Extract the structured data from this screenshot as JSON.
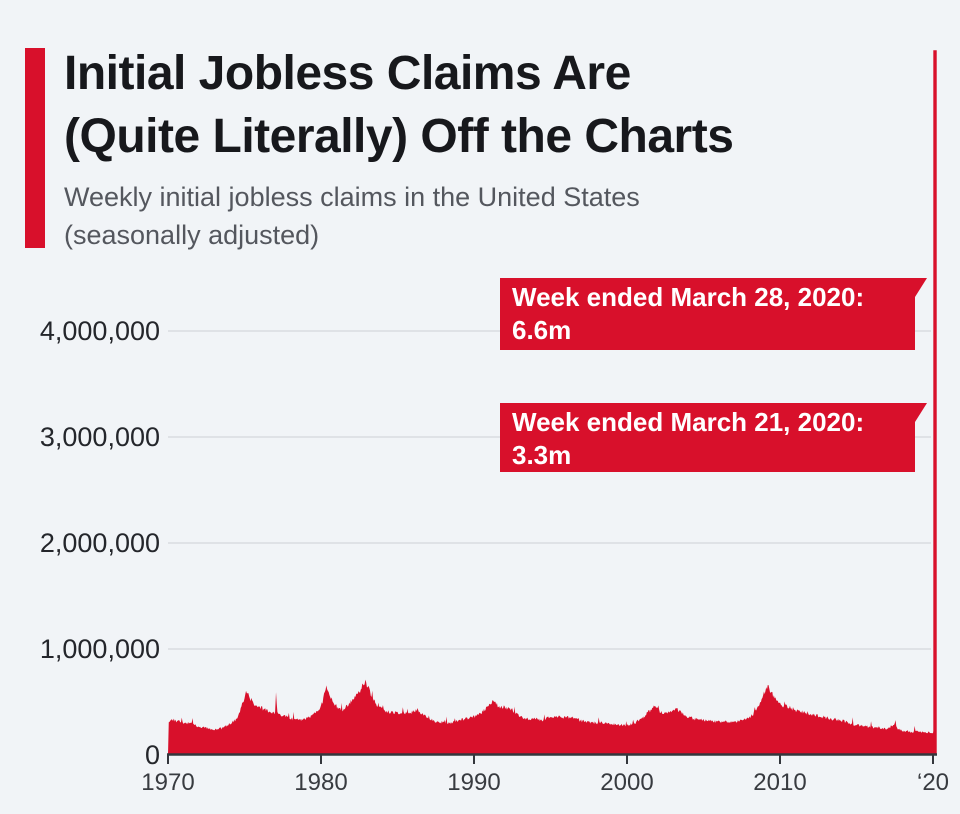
{
  "header": {
    "title_line1": "Initial Jobless Claims Are",
    "title_line2": "(Quite Literally) Off the Charts",
    "subtitle_line1": "Weekly initial jobless claims in the United States",
    "subtitle_line2": "(seasonally adjusted)"
  },
  "colors": {
    "accent_red": "#d8102b",
    "background": "#f1f4f7",
    "gridline": "#d9dce1",
    "axis": "#33363c",
    "title_text": "#17181c",
    "subtitle_text": "#54575e",
    "annotation_text": "#ffffff"
  },
  "annotations": [
    {
      "line1": "Week ended March 28, 2020:",
      "line2": "6.6m",
      "date": "March 28, 2020",
      "value": 6648000
    },
    {
      "line1": "Week ended March 21, 2020:",
      "line2": "3.3m",
      "date": "March 21, 2020",
      "value": 3307000
    }
  ],
  "chart_data": {
    "type": "area",
    "title": "Initial Jobless Claims Are (Quite Literally) Off the Charts",
    "subtitle": "Weekly initial jobless claims in the United States (seasonally adjusted)",
    "series_name": "Weekly initial jobless claims (seasonally adjusted)",
    "xlabel": "",
    "ylabel": "",
    "grid": true,
    "x_range": [
      1970,
      2020.25
    ],
    "ylim": [
      0,
      4300000
    ],
    "x_ticks": [
      {
        "label": "1970",
        "year": 1970
      },
      {
        "label": "1980",
        "year": 1980
      },
      {
        "label": "1990",
        "year": 1990
      },
      {
        "label": "2000",
        "year": 2000
      },
      {
        "label": "2010",
        "year": 2010
      },
      {
        "label": "‘20",
        "year": 2020
      }
    ],
    "y_ticks": [
      {
        "label": "0",
        "value": 0
      },
      {
        "label": "1,000,000",
        "value": 1000000
      },
      {
        "label": "2,000,000",
        "value": 2000000
      },
      {
        "label": "3,000,000",
        "value": 3000000
      },
      {
        "label": "4,000,000",
        "value": 4000000
      }
    ],
    "points": [
      [
        1970.0,
        300000
      ],
      [
        1970.3,
        332000
      ],
      [
        1970.6,
        318000
      ],
      [
        1971.0,
        308000
      ],
      [
        1971.5,
        295000
      ],
      [
        1972.0,
        268000
      ],
      [
        1972.5,
        254000
      ],
      [
        1973.0,
        242000
      ],
      [
        1973.5,
        252000
      ],
      [
        1974.0,
        290000
      ],
      [
        1974.5,
        340000
      ],
      [
        1974.8,
        450000
      ],
      [
        1975.1,
        595000
      ],
      [
        1975.35,
        540000
      ],
      [
        1975.6,
        480000
      ],
      [
        1976.0,
        450000
      ],
      [
        1976.5,
        420000
      ],
      [
        1977.0,
        390000
      ],
      [
        1977.06,
        575000
      ],
      [
        1977.15,
        390000
      ],
      [
        1977.5,
        372000
      ],
      [
        1978.0,
        346000
      ],
      [
        1978.5,
        332000
      ],
      [
        1979.0,
        340000
      ],
      [
        1979.5,
        380000
      ],
      [
        1980.0,
        450000
      ],
      [
        1980.35,
        640000
      ],
      [
        1980.6,
        560000
      ],
      [
        1981.0,
        460000
      ],
      [
        1981.4,
        430000
      ],
      [
        1981.8,
        480000
      ],
      [
        1982.0,
        520000
      ],
      [
        1982.5,
        600000
      ],
      [
        1982.85,
        685000
      ],
      [
        1983.05,
        665000
      ],
      [
        1983.3,
        550000
      ],
      [
        1983.6,
        480000
      ],
      [
        1984.0,
        430000
      ],
      [
        1984.5,
        400000
      ],
      [
        1985.0,
        395000
      ],
      [
        1985.5,
        400000
      ],
      [
        1986.0,
        405000
      ],
      [
        1986.3,
        425000
      ],
      [
        1986.7,
        378000
      ],
      [
        1987.0,
        342000
      ],
      [
        1987.5,
        318000
      ],
      [
        1988.0,
        308000
      ],
      [
        1988.5,
        304000
      ],
      [
        1989.0,
        328000
      ],
      [
        1989.5,
        342000
      ],
      [
        1990.0,
        360000
      ],
      [
        1990.5,
        400000
      ],
      [
        1991.0,
        480000
      ],
      [
        1991.25,
        505000
      ],
      [
        1991.6,
        462000
      ],
      [
        1992.0,
        448000
      ],
      [
        1992.5,
        420000
      ],
      [
        1993.0,
        360000
      ],
      [
        1993.5,
        340000
      ],
      [
        1994.0,
        345000
      ],
      [
        1994.5,
        328000
      ],
      [
        1995.0,
        358000
      ],
      [
        1995.5,
        368000
      ],
      [
        1996.0,
        356000
      ],
      [
        1996.5,
        348000
      ],
      [
        1997.0,
        322000
      ],
      [
        1997.5,
        312000
      ],
      [
        1998.0,
        302000
      ],
      [
        1998.5,
        306000
      ],
      [
        1999.0,
        292000
      ],
      [
        1999.5,
        285000
      ],
      [
        2000.0,
        278000
      ],
      [
        2000.5,
        300000
      ],
      [
        2001.0,
        350000
      ],
      [
        2001.5,
        420000
      ],
      [
        2001.8,
        480000
      ],
      [
        2002.1,
        410000
      ],
      [
        2002.5,
        395000
      ],
      [
        2003.0,
        420000
      ],
      [
        2003.3,
        430000
      ],
      [
        2003.7,
        390000
      ],
      [
        2004.0,
        352000
      ],
      [
        2004.5,
        338000
      ],
      [
        2005.0,
        330000
      ],
      [
        2005.5,
        320000
      ],
      [
        2006.0,
        312000
      ],
      [
        2006.5,
        316000
      ],
      [
        2007.0,
        318000
      ],
      [
        2007.5,
        322000
      ],
      [
        2008.0,
        352000
      ],
      [
        2008.5,
        428000
      ],
      [
        2008.9,
        558000
      ],
      [
        2009.2,
        660000
      ],
      [
        2009.5,
        572000
      ],
      [
        2009.8,
        512000
      ],
      [
        2010.0,
        472000
      ],
      [
        2010.5,
        458000
      ],
      [
        2011.0,
        422000
      ],
      [
        2011.5,
        408000
      ],
      [
        2012.0,
        382000
      ],
      [
        2012.5,
        368000
      ],
      [
        2013.0,
        352000
      ],
      [
        2013.5,
        338000
      ],
      [
        2014.0,
        328000
      ],
      [
        2014.5,
        302000
      ],
      [
        2015.0,
        282000
      ],
      [
        2015.5,
        272000
      ],
      [
        2016.0,
        262000
      ],
      [
        2016.5,
        258000
      ],
      [
        2017.0,
        246000
      ],
      [
        2017.55,
        300000
      ],
      [
        2017.7,
        242000
      ],
      [
        2018.0,
        228000
      ],
      [
        2018.5,
        216000
      ],
      [
        2019.0,
        222000
      ],
      [
        2019.5,
        214000
      ],
      [
        2020.0,
        211000
      ],
      [
        2020.12,
        282000
      ],
      [
        2020.17,
        3307000
      ],
      [
        2020.21,
        6648000
      ]
    ]
  }
}
